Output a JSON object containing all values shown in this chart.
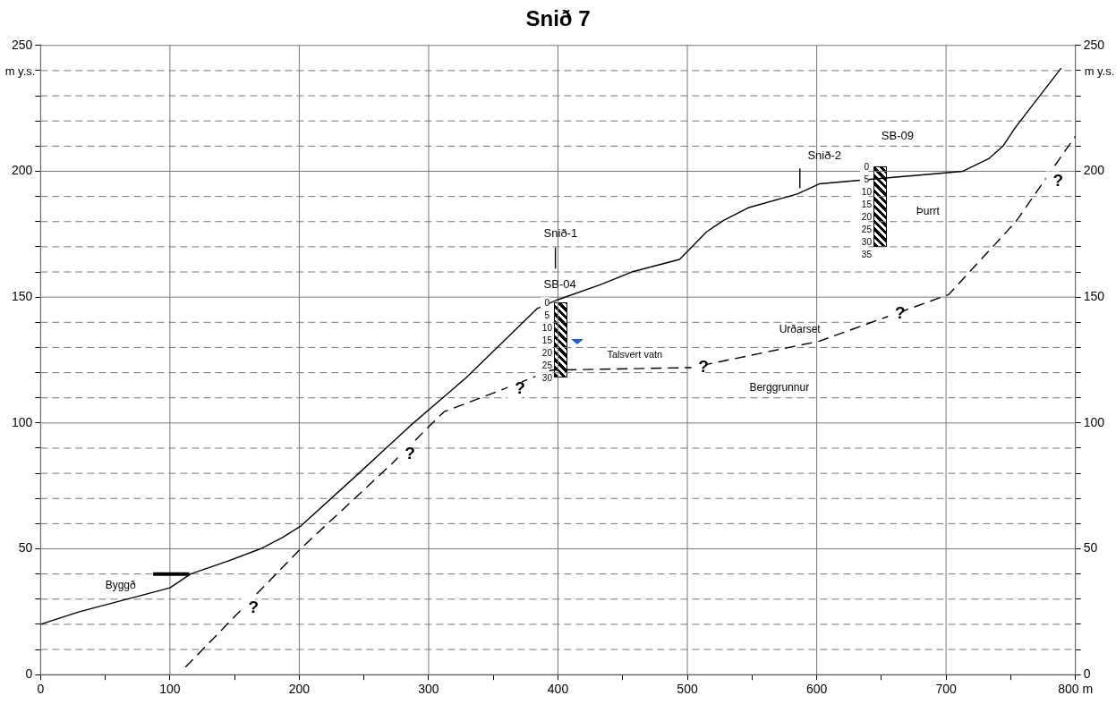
{
  "chart_data": {
    "type": "line",
    "title": "Snið 7",
    "ylabel": "m y.s.",
    "y2label": "m y.s.",
    "xlim": [
      0,
      800
    ],
    "xticks": [
      0,
      {
        "value": 50,
        "label": null
      },
      100,
      {
        "value": 150,
        "label": null
      },
      200,
      {
        "value": 250,
        "label": null
      },
      300,
      {
        "value": 350,
        "label": null
      },
      400,
      {
        "value": 450,
        "label": null
      },
      500,
      {
        "value": 550,
        "label": null
      },
      600,
      {
        "value": 650,
        "label": null
      },
      700,
      {
        "value": 750,
        "label": null
      },
      {
        "value": 800,
        "label": "800 m"
      }
    ],
    "ylim": [
      0,
      250
    ],
    "yticks": [
      0,
      {
        "value": 10,
        "label": null
      },
      {
        "value": 20,
        "label": null
      },
      {
        "value": 30,
        "label": null
      },
      {
        "value": 40,
        "label": null
      },
      50,
      {
        "value": 60,
        "label": null
      },
      {
        "value": 70,
        "label": null
      },
      {
        "value": 80,
        "label": null
      },
      {
        "value": 90,
        "label": null
      },
      100,
      {
        "value": 110,
        "label": null
      },
      {
        "value": 120,
        "label": null
      },
      {
        "value": 130,
        "label": null
      },
      {
        "value": 140,
        "label": null
      },
      150,
      {
        "value": 160,
        "label": null
      },
      {
        "value": 170,
        "label": null
      },
      {
        "value": 180,
        "label": null
      },
      {
        "value": 190,
        "label": null
      },
      200,
      {
        "value": 210,
        "label": null
      },
      {
        "value": 220,
        "label": null
      },
      {
        "value": 230,
        "label": null
      },
      {
        "value": 240,
        "label": null
      },
      250
    ],
    "y2lim": [
      0,
      250
    ],
    "y2ticks": [
      0,
      {
        "value": 10,
        "label": null
      },
      {
        "value": 20,
        "label": null
      },
      {
        "value": 30,
        "label": null
      },
      {
        "value": 40,
        "label": null
      },
      50,
      {
        "value": 60,
        "label": null
      },
      {
        "value": 70,
        "label": null
      },
      {
        "value": 80,
        "label": null
      },
      {
        "value": 90,
        "label": null
      },
      100,
      {
        "value": 110,
        "label": null
      },
      {
        "value": 120,
        "label": null
      },
      {
        "value": 130,
        "label": null
      },
      {
        "value": 140,
        "label": null
      },
      150,
      {
        "value": 160,
        "label": null
      },
      {
        "value": 170,
        "label": null
      },
      {
        "value": 180,
        "label": null
      },
      {
        "value": 190,
        "label": null
      },
      200,
      {
        "value": 210,
        "label": null
      },
      {
        "value": 220,
        "label": null
      },
      {
        "value": 230,
        "label": null
      },
      {
        "value": 240,
        "label": null
      },
      250
    ],
    "grid": true,
    "legend": false,
    "marker": "none",
    "series": [
      {
        "color": "#000000",
        "line_style": "solid",
        "x": [
          0,
          30,
          100,
          116,
          144,
          170,
          187,
          201,
          246,
          286,
          329,
          384,
          400,
          433,
          457,
          494,
          515,
          528,
          547,
          585,
          602,
          713,
          733,
          744,
          753,
          789
        ],
        "values": [
          20,
          25,
          34.5,
          40,
          45,
          50,
          54.5,
          59,
          80,
          99,
          118,
          145.5,
          149,
          155,
          160,
          165,
          176,
          180.5,
          185.5,
          191,
          195,
          200,
          205,
          210,
          217,
          241
        ]
      },
      {
        "color": "#000000",
        "line_style": "dashed",
        "x": [
          112,
          201,
          272,
          300,
          312,
          353,
          395,
          503,
          602,
          702,
          754,
          800
        ],
        "values": [
          3,
          50,
          84,
          98.5,
          104.5,
          112.5,
          121,
          122,
          132.5,
          151,
          180,
          214
        ]
      },
      {
        "color": "#000000",
        "line_style": "solid",
        "x": [
          87,
          115
        ],
        "values": [
          40,
          40
        ]
      },
      {
        "color": "#000000",
        "line_style": "solid",
        "x": [
          398,
          398
        ],
        "values": [
          169.5,
          161.5
        ]
      },
      {
        "color": "#000000",
        "line_style": "solid",
        "x": [
          587,
          587
        ],
        "values": [
          201,
          193.5
        ]
      }
    ],
    "annotations": [
      {
        "text": "?",
        "x": 155,
        "y": 25
      },
      {
        "text": "?",
        "x": 276,
        "y": 86
      },
      {
        "text": "?",
        "x": 361,
        "y": 112
      },
      {
        "text": "?",
        "x": 503,
        "y": 120.5
      },
      {
        "text": "?",
        "x": 655,
        "y": 142
      },
      {
        "text": "?",
        "x": 777,
        "y": 194.5
      },
      "Byggð",
      "Snið-1",
      "Snið-2",
      "SB-04",
      "SB-09",
      "Talsvert vatn",
      "Urðarset",
      "Berggrunnur",
      "Þurrt",
      "0",
      "5",
      "10",
      "15",
      "20",
      "25",
      "30",
      "0",
      "5",
      "10",
      "15",
      "20",
      "25",
      "30",
      "35"
    ]
  }
}
